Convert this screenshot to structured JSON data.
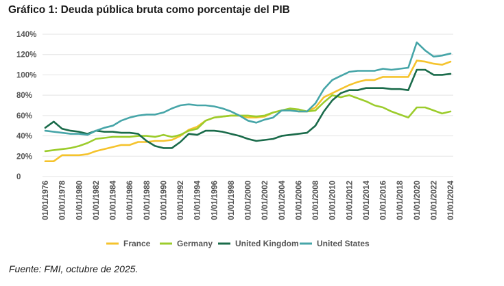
{
  "page": {
    "title": "Gráfico 1: Deuda pública bruta como porcentaje del PIB",
    "source": "Fuente: FMI, octubre de 2025."
  },
  "chart_data": {
    "type": "line",
    "title": "Gráfico 1: Deuda pública bruta como porcentaje del PIB",
    "xlabel": "",
    "ylabel": "",
    "ylim": [
      0,
      140
    ],
    "grid": "horizontal",
    "legend_position": "bottom",
    "y_ticks": [
      0,
      20,
      40,
      60,
      80,
      100,
      120,
      140
    ],
    "y_tick_labels": [
      "0",
      "20%",
      "40%",
      "60%",
      "80%",
      "100%",
      "120%",
      "140%"
    ],
    "x": [
      "01/01/1976",
      "01/01/1977",
      "01/01/1978",
      "01/01/1979",
      "01/01/1980",
      "01/01/1981",
      "01/01/1982",
      "01/01/1983",
      "01/01/1984",
      "01/01/1985",
      "01/01/1986",
      "01/01/1987",
      "01/01/1988",
      "01/01/1989",
      "01/01/1990",
      "01/01/1991",
      "01/01/1992",
      "01/01/1993",
      "01/01/1994",
      "01/01/1995",
      "01/01/1996",
      "01/01/1997",
      "01/01/1998",
      "01/01/1999",
      "01/01/2000",
      "01/01/2001",
      "01/01/2002",
      "01/01/2003",
      "01/01/2004",
      "01/01/2005",
      "01/01/2006",
      "01/01/2007",
      "01/01/2008",
      "01/01/2009",
      "01/01/2010",
      "01/01/2011",
      "01/01/2012",
      "01/01/2013",
      "01/01/2014",
      "01/01/2015",
      "01/01/2016",
      "01/01/2017",
      "01/01/2018",
      "01/01/2019",
      "01/01/2020",
      "01/01/2021",
      "01/01/2022",
      "01/01/2023",
      "01/01/2024"
    ],
    "x_tick_labels": [
      "01/01/1976",
      "01/01/1978",
      "01/01/1980",
      "01/01/1982",
      "01/01/1984",
      "01/01/1986",
      "01/01/1988",
      "01/01/1990",
      "01/01/1992",
      "01/01/1994",
      "01/01/1996",
      "01/01/1998",
      "01/01/2000",
      "01/01/2002",
      "01/01/2004",
      "01/01/2006",
      "01/01/2008",
      "01/01/2010",
      "01/01/2012",
      "01/01/2014",
      "01/01/2016",
      "01/01/2018",
      "01/01/2020",
      "01/01/2022",
      "01/01/2024"
    ],
    "series": [
      {
        "name": "France",
        "color": "#f5c32c",
        "values": [
          15,
          15,
          21,
          21,
          21,
          22,
          25,
          27,
          29,
          31,
          31,
          34,
          34,
          35,
          35,
          36,
          40,
          46,
          49,
          55,
          58,
          59,
          60,
          60,
          58,
          58,
          59,
          63,
          65,
          66,
          64,
          64,
          68,
          78,
          82,
          86,
          90,
          93,
          95,
          95,
          98,
          98,
          98,
          98,
          114,
          113,
          111,
          110,
          113
        ]
      },
      {
        "name": "Germany",
        "color": "#9ccc2c",
        "values": [
          25,
          26,
          27,
          28,
          30,
          33,
          37,
          38,
          39,
          39,
          39,
          40,
          40,
          39,
          41,
          39,
          41,
          45,
          47,
          55,
          58,
          59,
          60,
          60,
          60,
          59,
          60,
          63,
          65,
          67,
          66,
          64,
          65,
          73,
          80,
          78,
          80,
          77,
          74,
          70,
          68,
          64,
          61,
          58,
          68,
          68,
          65,
          62,
          64
        ]
      },
      {
        "name": "United Kingdom",
        "color": "#1a6b4a",
        "values": [
          48,
          54,
          47,
          45,
          44,
          42,
          45,
          44,
          44,
          43,
          43,
          42,
          35,
          30,
          28,
          28,
          34,
          42,
          41,
          45,
          45,
          44,
          42,
          40,
          37,
          35,
          36,
          37,
          40,
          41,
          42,
          43,
          50,
          64,
          75,
          82,
          85,
          85,
          87,
          87,
          87,
          86,
          86,
          85,
          105,
          105,
          100,
          100,
          101
        ]
      },
      {
        "name": "United States",
        "color": "#46a5a8",
        "values": [
          45,
          44,
          43,
          42,
          42,
          41,
          45,
          48,
          50,
          55,
          58,
          60,
          61,
          61,
          63,
          67,
          70,
          71,
          70,
          70,
          69,
          67,
          64,
          60,
          55,
          53,
          56,
          58,
          65,
          65,
          64,
          64,
          72,
          86,
          95,
          99,
          103,
          104,
          104,
          104,
          106,
          105,
          106,
          107,
          132,
          124,
          118,
          119,
          121
        ]
      }
    ]
  }
}
